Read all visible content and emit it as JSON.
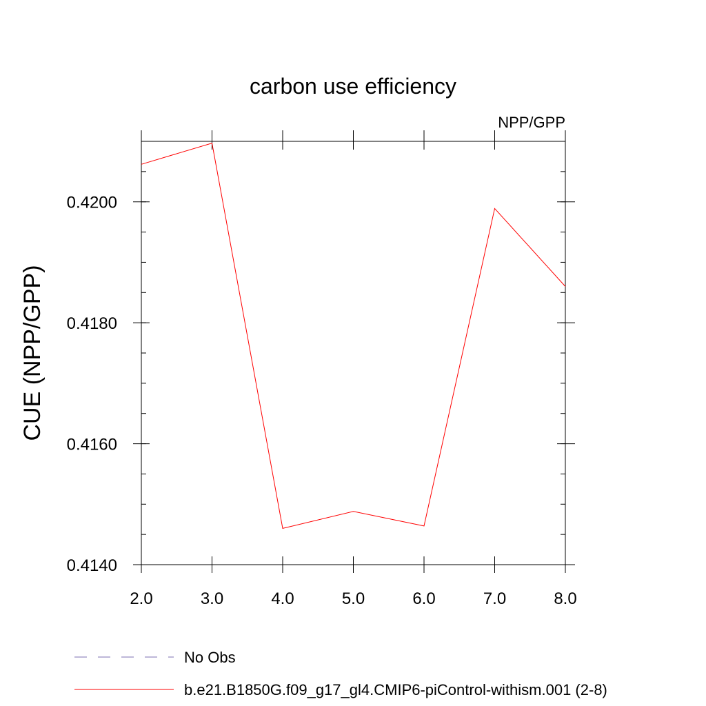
{
  "chart_data": {
    "type": "line",
    "title": "carbon use efficiency",
    "subtitle": "NPP/GPP",
    "xlabel": "",
    "ylabel": "CUE  (NPP/GPP)",
    "xlim": [
      2.0,
      8.0
    ],
    "ylim": [
      0.414,
      0.421
    ],
    "x_ticks": [
      2.0,
      3.0,
      4.0,
      5.0,
      6.0,
      7.0,
      8.0
    ],
    "x_tick_labels": [
      "2.0",
      "3.0",
      "4.0",
      "5.0",
      "6.0",
      "7.0",
      "8.0"
    ],
    "y_ticks": [
      0.414,
      0.416,
      0.418,
      0.42
    ],
    "y_tick_labels": [
      "0.4140",
      "0.4160",
      "0.4180",
      "0.4200"
    ],
    "y_minor_step": 0.0005,
    "grid": false,
    "series": [
      {
        "name": "b.e21.B1850G.f09_g17_gl4.CMIP6-piControl-withism.001 (2-8)",
        "color": "#ff0000",
        "dash": "solid",
        "x": [
          2.0,
          3.0,
          4.0,
          5.0,
          6.0,
          7.0,
          8.0
        ],
        "y": [
          0.42062,
          0.42097,
          0.4146,
          0.41488,
          0.41464,
          0.41989,
          0.4186
        ]
      }
    ],
    "legend": {
      "placement": "bottom-left",
      "entries": [
        {
          "label": "No Obs",
          "color": "#7b6fb0",
          "dash": "dashed"
        },
        {
          "label": "b.e21.B1850G.f09_g17_gl4.CMIP6-piControl-withism.001 (2-8)",
          "color": "#ff0000",
          "dash": "solid"
        }
      ]
    }
  }
}
